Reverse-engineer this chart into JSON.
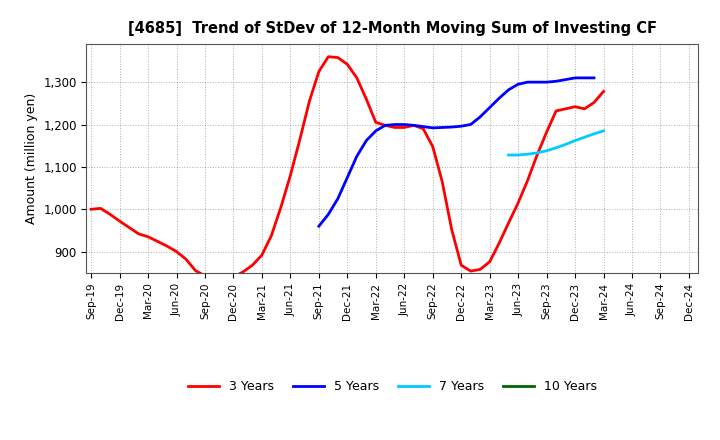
{
  "title": "[4685]  Trend of StDev of 12-Month Moving Sum of Investing CF",
  "ylabel": "Amount (million yen)",
  "background_color": "#ffffff",
  "grid_color": "#999999",
  "ylim": [
    850,
    1390
  ],
  "yticks": [
    900,
    1000,
    1100,
    1200,
    1300
  ],
  "series": [
    {
      "name": "3 Years",
      "color": "#ff0000",
      "x": [
        0,
        1,
        2,
        3,
        4,
        5,
        6,
        7,
        8,
        9,
        10,
        11,
        12,
        13,
        14,
        15,
        16,
        17,
        18,
        19,
        20,
        21,
        22,
        23,
        24,
        25,
        26,
        27,
        28,
        29,
        30,
        31,
        32,
        33,
        34,
        35,
        36,
        37,
        38,
        39,
        40,
        41,
        42,
        43,
        44,
        45,
        46,
        47,
        48,
        49,
        50,
        51,
        52,
        53,
        54
      ],
      "y": [
        1000,
        1002,
        988,
        972,
        957,
        942,
        935,
        924,
        913,
        900,
        882,
        855,
        843,
        838,
        836,
        840,
        852,
        868,
        892,
        938,
        1005,
        1080,
        1165,
        1255,
        1325,
        1360,
        1358,
        1342,
        1310,
        1260,
        1205,
        1198,
        1193,
        1193,
        1198,
        1190,
        1148,
        1065,
        952,
        868,
        854,
        858,
        876,
        920,
        968,
        1015,
        1068,
        1128,
        1182,
        1232,
        1237,
        1242,
        1237,
        1252,
        1278
      ]
    },
    {
      "name": "5 Years",
      "color": "#0000ff",
      "x": [
        24,
        25,
        26,
        27,
        28,
        29,
        30,
        31,
        32,
        33,
        34,
        35,
        36,
        37,
        38,
        39,
        40,
        41,
        42,
        43,
        44,
        45,
        46,
        47,
        48,
        49,
        50,
        51,
        52,
        53
      ],
      "y": [
        960,
        988,
        1025,
        1075,
        1125,
        1162,
        1185,
        1198,
        1200,
        1200,
        1198,
        1195,
        1192,
        1193,
        1194,
        1196,
        1200,
        1218,
        1240,
        1262,
        1282,
        1295,
        1300,
        1300,
        1300,
        1302,
        1306,
        1310,
        1310,
        1310
      ]
    },
    {
      "name": "7 Years",
      "color": "#00ccff",
      "x": [
        44,
        45,
        46,
        47,
        48,
        49,
        50,
        51,
        52,
        53,
        54
      ],
      "y": [
        1128,
        1128,
        1130,
        1133,
        1138,
        1145,
        1153,
        1162,
        1170,
        1178,
        1185
      ]
    },
    {
      "name": "10 Years",
      "color": "#006600",
      "x": [],
      "y": []
    }
  ],
  "x_labels": [
    "Sep-19",
    "Dec-19",
    "Mar-20",
    "Jun-20",
    "Sep-20",
    "Dec-20",
    "Mar-21",
    "Jun-21",
    "Sep-21",
    "Dec-21",
    "Mar-22",
    "Jun-22",
    "Sep-22",
    "Dec-22",
    "Mar-23",
    "Jun-23",
    "Sep-23",
    "Dec-23",
    "Mar-24",
    "Jun-24",
    "Sep-24",
    "Dec-24"
  ],
  "x_positions": [
    0,
    3,
    6,
    9,
    12,
    15,
    18,
    21,
    24,
    27,
    30,
    33,
    36,
    39,
    42,
    45,
    48,
    51,
    54,
    57,
    60,
    63
  ],
  "xlim": [
    -0.5,
    64
  ]
}
